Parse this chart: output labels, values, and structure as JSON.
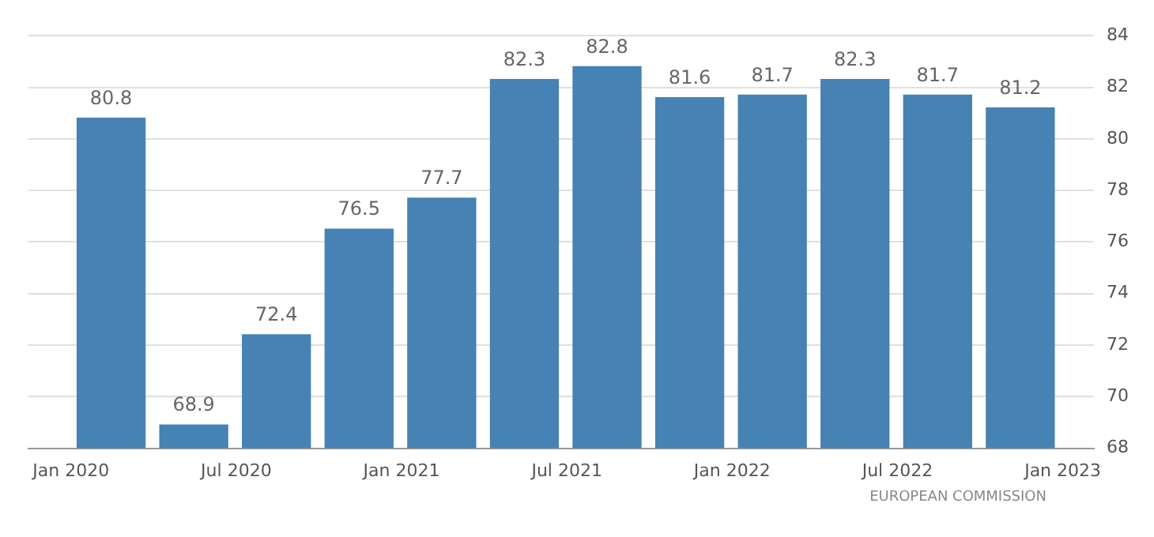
{
  "chart_data": {
    "type": "bar",
    "x": [
      "2020-02-15",
      "2020-05-15",
      "2020-08-15",
      "2020-11-15",
      "2021-02-15",
      "2021-05-15",
      "2021-08-15",
      "2021-11-15",
      "2022-02-15",
      "2022-05-15",
      "2022-08-15",
      "2022-11-15"
    ],
    "values": [
      80.8,
      68.9,
      72.4,
      76.5,
      77.7,
      82.3,
      82.8,
      81.6,
      81.7,
      82.3,
      81.7,
      81.2
    ],
    "color": "#4682b4",
    "xlim": [
      "2019-11-15",
      "2023-02-05"
    ],
    "xticks": [
      {
        "value": "2020-01-01",
        "label": "Jan 2020"
      },
      {
        "value": "2020-07-01",
        "label": "Jul 2020"
      },
      {
        "value": "2021-01-01",
        "label": "Jan 2021"
      },
      {
        "value": "2021-07-01",
        "label": "Jul 2021"
      },
      {
        "value": "2022-01-01",
        "label": "Jan 2022"
      },
      {
        "value": "2022-07-01",
        "label": "Jul 2022"
      },
      {
        "value": "2023-01-01",
        "label": "Jan 2023"
      }
    ],
    "ylim": [
      68,
      84
    ],
    "yticks": [
      68,
      70,
      72,
      74,
      76,
      78,
      80,
      82,
      84
    ],
    "grid": "y",
    "data_labels": true,
    "annotations": [
      "EUROPEAN COMMISSION"
    ]
  }
}
